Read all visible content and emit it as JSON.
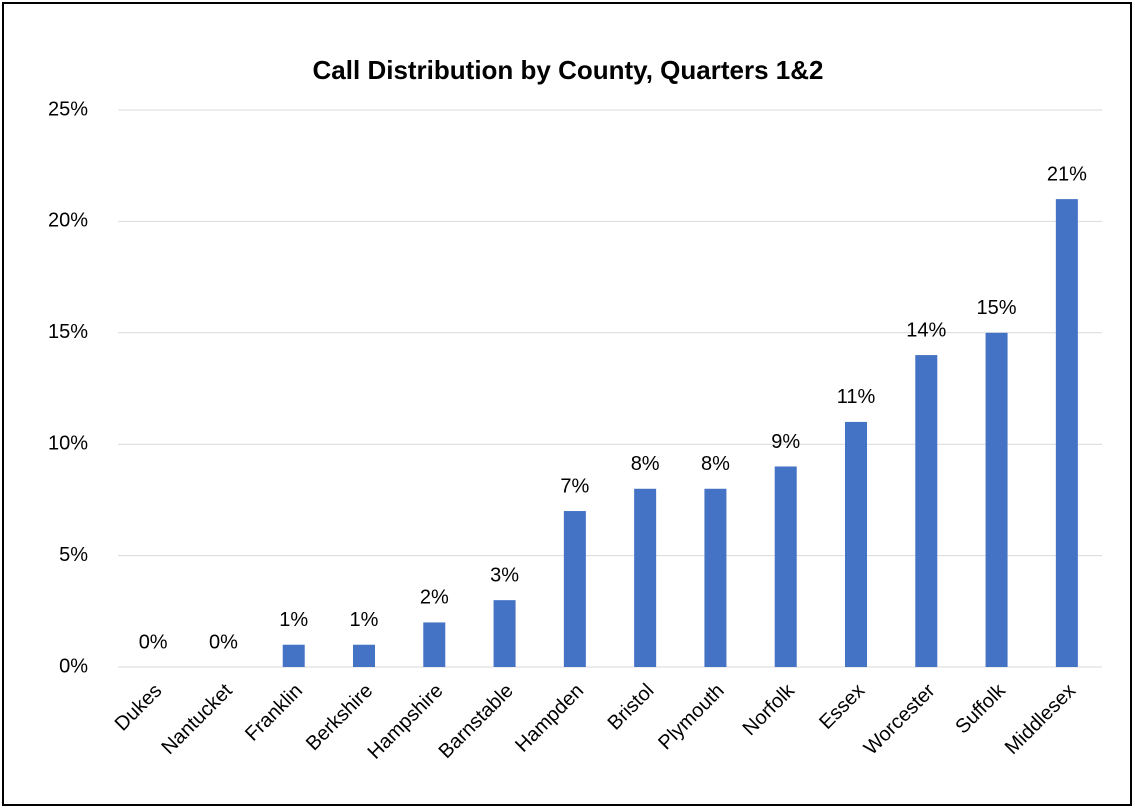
{
  "chart_data": {
    "type": "bar",
    "title": "Call Distribution by County, Quarters 1&2",
    "categories": [
      "Dukes",
      "Nantucket",
      "Franklin",
      "Berkshire",
      "Hampshire",
      "Barnstable",
      "Hampden",
      "Bristol",
      "Plymouth",
      "Norfolk",
      "Essex",
      "Worcester",
      "Suffolk",
      "Middlesex"
    ],
    "values": [
      0,
      0,
      1,
      1,
      2,
      3,
      7,
      8,
      8,
      9,
      11,
      14,
      15,
      21
    ],
    "value_labels": [
      "0%",
      "0%",
      "1%",
      "1%",
      "2%",
      "3%",
      "7%",
      "8%",
      "8%",
      "9%",
      "11%",
      "14%",
      "15%",
      "21%"
    ],
    "color": "#4472c4",
    "ylim": [
      0,
      25
    ],
    "yticks": [
      {
        "value": 0,
        "label": "0%"
      },
      {
        "value": 5,
        "label": "5%"
      },
      {
        "value": 10,
        "label": "10%"
      },
      {
        "value": 15,
        "label": "15%"
      },
      {
        "value": 20,
        "label": "20%"
      },
      {
        "value": 25,
        "label": "25%"
      }
    ],
    "grid": true
  }
}
